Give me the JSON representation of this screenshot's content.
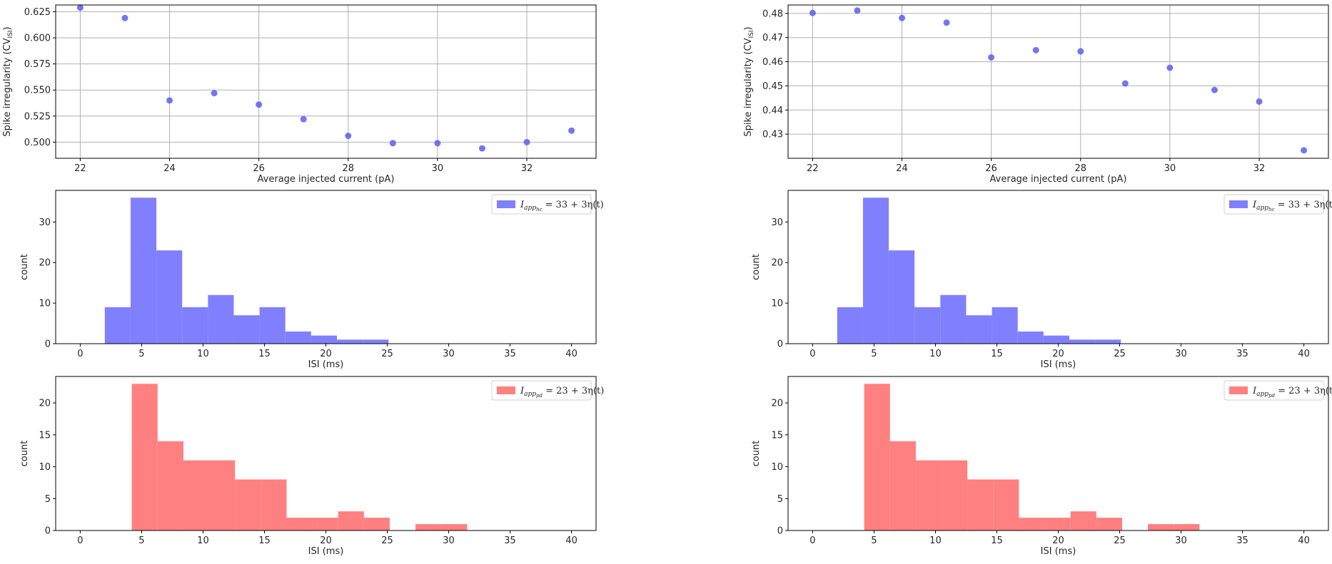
{
  "chart_data": [
    {
      "id": "cv_left",
      "type": "scatter",
      "title": "",
      "xlabel": "Average injected current (pA)",
      "ylabel": "Spike irregularity (CV",
      "ylabel_sub": "ISI",
      "ylabel_end": ")",
      "xlim": [
        21.45,
        33.55
      ],
      "ylim": [
        0.4845,
        0.6315
      ],
      "xticks": [
        22,
        24,
        26,
        28,
        30,
        32
      ],
      "yticks": [
        0.5,
        0.525,
        0.55,
        0.575,
        0.6,
        0.625
      ],
      "ytick_labels": [
        "0.500",
        "0.525",
        "0.550",
        "0.575",
        "0.600",
        "0.625"
      ],
      "grid": true,
      "color": "#5b5ef0",
      "x": [
        22,
        23,
        24,
        25,
        26,
        27,
        28,
        29,
        30,
        31,
        32,
        33
      ],
      "y": [
        0.629,
        0.619,
        0.54,
        0.547,
        0.536,
        0.522,
        0.506,
        0.499,
        0.499,
        0.494,
        0.5,
        0.511
      ]
    },
    {
      "id": "cv_right",
      "type": "scatter",
      "title": "",
      "xlabel": "Average injected current (pA)",
      "ylabel": "Spike irregularity (CV",
      "ylabel_sub": "ISI",
      "ylabel_end": ")",
      "xlim": [
        21.45,
        33.55
      ],
      "ylim": [
        0.42,
        0.4835
      ],
      "xticks": [
        22,
        24,
        26,
        28,
        30,
        32
      ],
      "yticks": [
        0.43,
        0.44,
        0.45,
        0.46,
        0.47,
        0.48
      ],
      "ytick_labels": [
        "0.43",
        "0.44",
        "0.45",
        "0.46",
        "0.47",
        "0.48"
      ],
      "grid": true,
      "color": "#5b5ef0",
      "x": [
        22,
        23,
        24,
        25,
        26,
        27,
        28,
        29,
        30,
        31,
        32,
        33
      ],
      "y": [
        0.4802,
        0.4812,
        0.4781,
        0.4762,
        0.4618,
        0.4648,
        0.4643,
        0.451,
        0.4575,
        0.4483,
        0.4435,
        0.4233
      ]
    },
    {
      "id": "hist_blue_left",
      "type": "bar",
      "xlabel": "ISI (ms)",
      "ylabel": "count",
      "xlim": [
        -2,
        42
      ],
      "ylim": [
        0,
        37.8
      ],
      "xticks": [
        0,
        5,
        10,
        15,
        20,
        25,
        30,
        35,
        40
      ],
      "yticks": [
        0,
        10,
        20,
        30
      ],
      "grid": false,
      "color": "#8080ff",
      "bin_edges": [
        2.0,
        4.1,
        6.2,
        8.3,
        10.4,
        12.5,
        14.6,
        16.7,
        18.8,
        20.9,
        23.0,
        25.1
      ],
      "values": [
        9,
        36,
        23,
        9,
        12,
        7,
        9,
        3,
        2,
        1,
        1
      ],
      "legend": {
        "label_main": "I",
        "label_sub": "app",
        "label_subsub": "hc",
        "label_rest": " = 33 + 3η(t)",
        "location": "upper right"
      }
    },
    {
      "id": "hist_blue_right",
      "type": "bar",
      "xlabel": "ISI (ms)",
      "ylabel": "count",
      "xlim": [
        -2,
        42
      ],
      "ylim": [
        0,
        37.8
      ],
      "xticks": [
        0,
        5,
        10,
        15,
        20,
        25,
        30,
        35,
        40
      ],
      "yticks": [
        0,
        10,
        20,
        30
      ],
      "grid": false,
      "color": "#8080ff",
      "bin_edges": [
        2.0,
        4.1,
        6.2,
        8.3,
        10.4,
        12.5,
        14.6,
        16.7,
        18.8,
        20.9,
        23.0,
        25.1
      ],
      "values": [
        9,
        36,
        23,
        9,
        12,
        7,
        9,
        3,
        2,
        1,
        1
      ],
      "legend": {
        "label_main": "I",
        "label_sub": "app",
        "label_subsub": "hc",
        "label_rest": " = 33 + 3η(t)",
        "location": "upper right"
      }
    },
    {
      "id": "hist_red_left",
      "type": "bar",
      "xlabel": "ISI (ms)",
      "ylabel": "count",
      "xlim": [
        -2,
        42
      ],
      "ylim": [
        0,
        24.15
      ],
      "xticks": [
        0,
        5,
        10,
        15,
        20,
        25,
        30,
        35,
        40
      ],
      "yticks": [
        0,
        5,
        10,
        15,
        20
      ],
      "grid": false,
      "color": "#ff8080",
      "bin_edges": [
        4.2,
        6.3,
        8.4,
        10.5,
        12.6,
        14.7,
        16.8,
        18.9,
        21.0,
        23.1,
        25.2,
        27.3,
        29.4,
        31.5
      ],
      "values": [
        23,
        14,
        11,
        11,
        8,
        8,
        2,
        2,
        3,
        2,
        0,
        1,
        1
      ],
      "legend": {
        "label_main": "I",
        "label_sub": "app",
        "label_subsub": "pd",
        "label_rest": " = 23 + 3η(t)",
        "location": "upper right"
      }
    },
    {
      "id": "hist_red_right",
      "type": "bar",
      "xlabel": "ISI (ms)",
      "ylabel": "count",
      "xlim": [
        -2,
        42
      ],
      "ylim": [
        0,
        24.15
      ],
      "xticks": [
        0,
        5,
        10,
        15,
        20,
        25,
        30,
        35,
        40
      ],
      "yticks": [
        0,
        5,
        10,
        15,
        20
      ],
      "grid": false,
      "color": "#ff8080",
      "bin_edges": [
        4.2,
        6.3,
        8.4,
        10.5,
        12.6,
        14.7,
        16.8,
        18.9,
        21.0,
        23.1,
        25.2,
        27.3,
        29.4,
        31.5
      ],
      "values": [
        23,
        14,
        11,
        11,
        8,
        8,
        2,
        2,
        3,
        2,
        0,
        1,
        1
      ],
      "legend": {
        "label_main": "I",
        "label_sub": "app",
        "label_subsub": "pd",
        "label_rest": " = 23 + 3η(t)",
        "location": "upper right"
      }
    }
  ]
}
